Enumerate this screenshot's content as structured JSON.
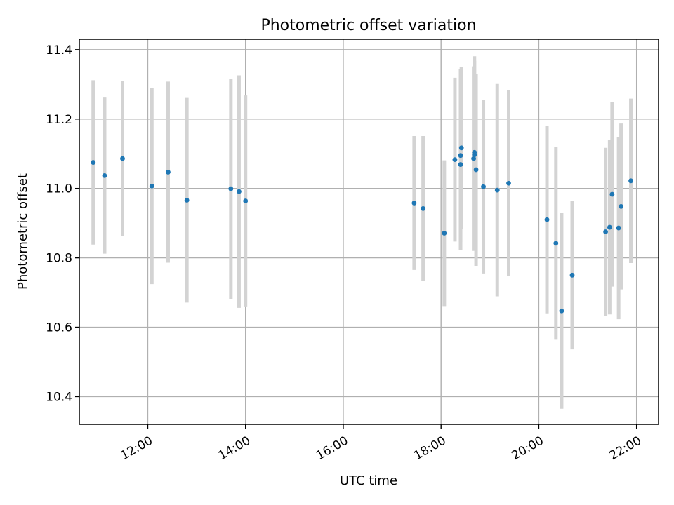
{
  "chart_data": {
    "type": "scatter",
    "title": "Photometric offset variation",
    "xlabel": "UTC time",
    "ylabel": "Photometric offset",
    "x_tick_labels": [
      "12:00",
      "14:00",
      "16:00",
      "18:00",
      "20:00",
      "22:00"
    ],
    "y_tick_labels": [
      "10.4",
      "10.6",
      "10.8",
      "11.0",
      "11.2",
      "11.4"
    ],
    "xlim": [
      "10:36",
      "22:27"
    ],
    "ylim": [
      10.32,
      11.43
    ],
    "grid": true,
    "colors": {
      "point": "#1f77b4",
      "errorbar": "#d3d3d3"
    },
    "series": [
      {
        "x": [
          "10:53",
          "11:07",
          "11:29",
          "12:05",
          "12:25",
          "12:48",
          "13:42",
          "13:52",
          "14:00",
          "17:27",
          "17:38",
          "18:04",
          "18:17",
          "18:24",
          "18:24",
          "18:25",
          "18:40",
          "18:41",
          "18:41",
          "18:43",
          "18:52",
          "19:09",
          "19:23",
          "20:10",
          "20:21",
          "20:28",
          "20:41",
          "21:22",
          "21:27",
          "21:30",
          "21:38",
          "21:41",
          "21:53"
        ],
        "y": [
          11.075,
          11.037,
          11.086,
          11.007,
          11.047,
          10.966,
          10.999,
          10.991,
          10.964,
          10.958,
          10.942,
          10.871,
          11.083,
          11.069,
          11.095,
          11.117,
          11.086,
          11.097,
          11.104,
          11.054,
          11.005,
          10.995,
          11.015,
          10.91,
          10.842,
          10.647,
          10.75,
          10.875,
          10.888,
          10.983,
          10.886,
          10.948,
          11.022
        ],
        "yerr": [
          0.237,
          0.225,
          0.224,
          0.283,
          0.261,
          0.295,
          0.317,
          0.335,
          0.304,
          0.193,
          0.209,
          0.21,
          0.236,
          0.246,
          0.249,
          0.233,
          0.266,
          0.271,
          0.277,
          0.277,
          0.25,
          0.306,
          0.268,
          0.27,
          0.278,
          0.282,
          0.214,
          0.242,
          0.251,
          0.266,
          0.263,
          0.239,
          0.237
        ]
      }
    ]
  }
}
